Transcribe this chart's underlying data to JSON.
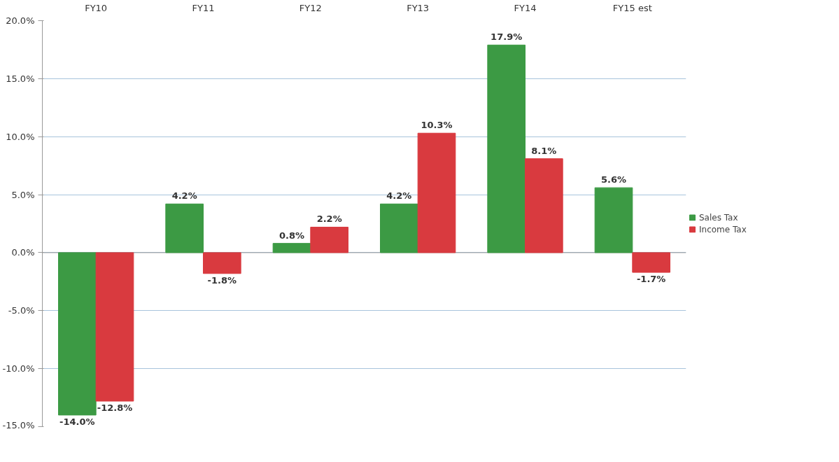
{
  "chart_data": {
    "type": "bar",
    "categories": [
      "FY10",
      "FY11",
      "FY12",
      "FY13",
      "FY14",
      "FY15 est"
    ],
    "series": [
      {
        "name": "Sales Tax",
        "color": "#3c9a44",
        "values": [
          -14.0,
          4.2,
          0.8,
          4.2,
          17.9,
          5.6
        ],
        "value_labels": [
          "-14.0%",
          "4.2%",
          "0.8%",
          "4.2%",
          "17.9%",
          "5.6%"
        ]
      },
      {
        "name": "Income Tax",
        "color": "#d93a3f",
        "values": [
          -12.8,
          -1.8,
          2.2,
          10.3,
          8.1,
          -1.7
        ],
        "value_labels": [
          "-12.8%",
          "-1.8%",
          "2.2%",
          "10.3%",
          "8.1%",
          "-1.7%"
        ]
      }
    ],
    "ylim": [
      -15,
      20
    ],
    "yticks": [
      {
        "value": -15,
        "label": "-15.0%"
      },
      {
        "value": -10,
        "label": "-10.0%"
      },
      {
        "value": -5,
        "label": "-5.0%"
      },
      {
        "value": 0,
        "label": "0.0%"
      },
      {
        "value": 5,
        "label": "5.0%"
      },
      {
        "value": 10,
        "label": "10.0%"
      },
      {
        "value": 15,
        "label": "15.0%"
      },
      {
        "value": 20,
        "label": "20.0%"
      }
    ],
    "grid": "y",
    "legend": "right"
  }
}
